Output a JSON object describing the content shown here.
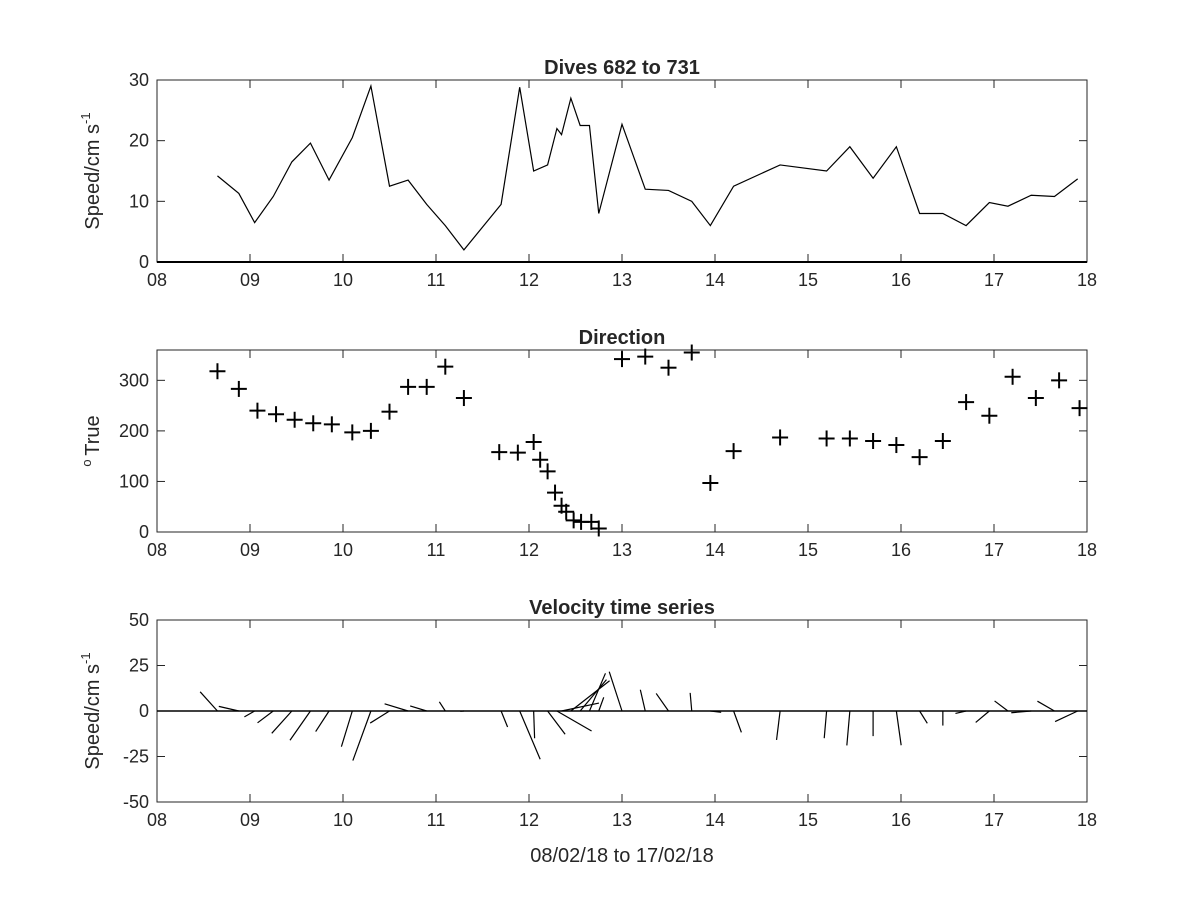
{
  "chart_data": [
    {
      "type": "line",
      "title": "Dives 682 to 731",
      "ylabel": "Speed/cm s",
      "ylabel_sup": "-1",
      "xlim": [
        8,
        18
      ],
      "ylim": [
        0,
        30
      ],
      "xticks": [
        "08",
        "09",
        "10",
        "11",
        "12",
        "13",
        "14",
        "15",
        "16",
        "17",
        "18"
      ],
      "yticks": [
        "0",
        "10",
        "20",
        "30"
      ],
      "series": [
        {
          "x": [
            8.65,
            8.88,
            9.05,
            9.25,
            9.45,
            9.65,
            9.85,
            10.1,
            10.3,
            10.5,
            10.7,
            10.9,
            11.1,
            11.3,
            11.7,
            11.9,
            12.05,
            12.2,
            12.3,
            12.35,
            12.45,
            12.55,
            12.65,
            12.75,
            13.0,
            13.25,
            13.5,
            13.75,
            13.95,
            14.2,
            14.7,
            15.2,
            15.45,
            15.7,
            15.95,
            16.2,
            16.45,
            16.7,
            16.95,
            17.15,
            17.4,
            17.65,
            17.9
          ],
          "values": [
            14.2,
            11.3,
            6.5,
            10.8,
            16.5,
            19.6,
            13.5,
            20.5,
            29,
            12.5,
            13.5,
            9.5,
            6,
            2,
            9.5,
            28.8,
            15,
            16,
            22,
            21,
            27,
            22.5,
            22.5,
            8,
            22.7,
            12,
            11.8,
            10,
            6,
            12.5,
            16,
            15,
            19,
            13.8,
            19,
            8,
            8,
            6,
            9.8,
            9.2,
            11,
            10.8,
            13.7
          ]
        }
      ]
    },
    {
      "type": "scatter",
      "title": "Direction",
      "ylabel": "True",
      "ylabel_prefix": "o",
      "xlim": [
        8,
        18
      ],
      "ylim": [
        0,
        360
      ],
      "xticks": [
        "08",
        "09",
        "10",
        "11",
        "12",
        "13",
        "14",
        "15",
        "16",
        "17",
        "18"
      ],
      "yticks": [
        "0",
        "100",
        "200",
        "300"
      ],
      "series": [
        {
          "x": [
            8.65,
            8.88,
            9.08,
            9.28,
            9.48,
            9.68,
            9.88,
            10.1,
            10.3,
            10.5,
            10.7,
            10.9,
            11.1,
            11.3,
            11.68,
            11.88,
            12.05,
            12.12,
            12.2,
            12.28,
            12.35,
            12.4,
            12.48,
            12.56,
            12.67,
            12.75,
            13.0,
            13.25,
            13.5,
            13.75,
            13.95,
            14.2,
            14.7,
            15.2,
            15.45,
            15.7,
            15.95,
            16.2,
            16.45,
            16.7,
            16.95,
            17.2,
            17.45,
            17.7,
            17.92
          ],
          "values": [
            318,
            283,
            240,
            233,
            222,
            215,
            213,
            197,
            200,
            238,
            287,
            287,
            327,
            265,
            158,
            157,
            178,
            143,
            120,
            78,
            52,
            40,
            23,
            20,
            20,
            7,
            342,
            347,
            325,
            355,
            97,
            160,
            187,
            185,
            185,
            180,
            172,
            148,
            180,
            257,
            230,
            307,
            265,
            300,
            245
          ]
        }
      ]
    },
    {
      "type": "line",
      "subtype": "stick-vector",
      "title": "Velocity time series",
      "ylabel": "Speed/cm s",
      "ylabel_sup": "-1",
      "xlabel": "08/02/18 to 17/02/18",
      "xlim": [
        8,
        18
      ],
      "ylim": [
        -50,
        50
      ],
      "xticks": [
        "08",
        "09",
        "10",
        "11",
        "12",
        "13",
        "14",
        "15",
        "16",
        "17",
        "18"
      ],
      "yticks": [
        "-50",
        "-25",
        "0",
        "25",
        "50"
      ],
      "series": [
        {
          "x": [
            8.65,
            8.88,
            9.05,
            9.25,
            9.45,
            9.65,
            9.85,
            10.1,
            10.3,
            10.5,
            10.7,
            10.9,
            11.1,
            11.3,
            11.7,
            11.9,
            12.05,
            12.2,
            12.3,
            12.35,
            12.45,
            12.55,
            12.65,
            12.75,
            13.0,
            13.25,
            13.5,
            13.75,
            13.95,
            14.2,
            14.7,
            15.2,
            15.45,
            15.7,
            15.95,
            16.2,
            16.45,
            16.7,
            16.95,
            17.15,
            17.4,
            17.65,
            17.9
          ],
          "speed": [
            14.2,
            11.3,
            6.5,
            10.8,
            16.5,
            19.6,
            13.5,
            20.5,
            29,
            12.5,
            13.5,
            9.5,
            6,
            2,
            9.5,
            28.8,
            15,
            16,
            22,
            21,
            27,
            22.5,
            22.5,
            8,
            22.7,
            12,
            11.8,
            10,
            6,
            12.5,
            16,
            15,
            19,
            13.8,
            19,
            8,
            8,
            6,
            9.8,
            9.2,
            11,
            10.8,
            13.7
          ],
          "direction": [
            318,
            283,
            240,
            233,
            222,
            215,
            213,
            197,
            200,
            238,
            287,
            287,
            327,
            265,
            158,
            157,
            178,
            143,
            120,
            78,
            52,
            40,
            23,
            20,
            342,
            347,
            325,
            355,
            97,
            160,
            187,
            185,
            185,
            180,
            172,
            148,
            180,
            257,
            230,
            307,
            265,
            300,
            245
          ]
        }
      ]
    }
  ]
}
